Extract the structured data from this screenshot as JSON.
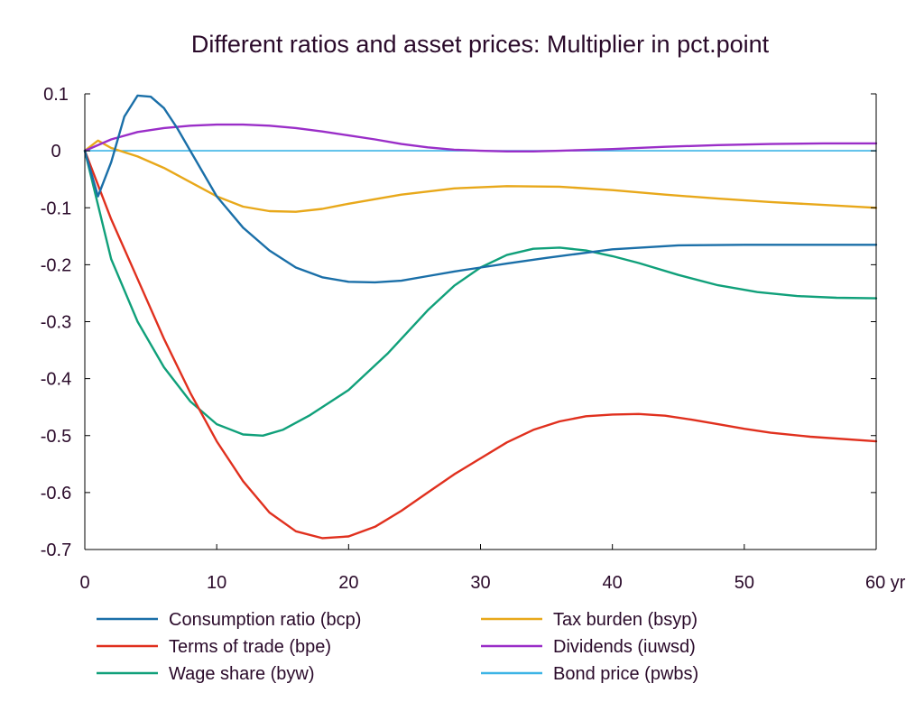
{
  "chart_data": {
    "type": "line",
    "title": "Different ratios and asset prices: Multiplier in pct.point",
    "xlabel": "",
    "ylabel": "",
    "xlim": [
      0,
      60
    ],
    "ylim": [
      -0.7,
      0.1
    ],
    "x_ticks": [
      0,
      10,
      20,
      30,
      40,
      50,
      60
    ],
    "x_tick_labels": [
      "0",
      "10",
      "20",
      "30",
      "40",
      "50",
      "60 yr"
    ],
    "y_ticks": [
      0.1,
      0,
      -0.1,
      -0.2,
      -0.3,
      -0.4,
      -0.5,
      -0.6,
      -0.7
    ],
    "y_tick_labels": [
      "0.1",
      "0",
      "-0.1",
      "-0.2",
      "-0.3",
      "-0.4",
      "-0.5",
      "-0.6",
      "-0.7"
    ],
    "grid": false,
    "legend_position": "bottom",
    "series": [
      {
        "name": "Consumption ratio (bcp)",
        "color": "#1a6fa8",
        "x": [
          0,
          1,
          2,
          3,
          4,
          5,
          6,
          7,
          8,
          10,
          12,
          14,
          16,
          18,
          20,
          22,
          24,
          26,
          28,
          30,
          32,
          35,
          40,
          45,
          50,
          55,
          60
        ],
        "y": [
          0,
          -0.08,
          -0.02,
          0.06,
          0.097,
          0.095,
          0.075,
          0.04,
          0.0,
          -0.08,
          -0.135,
          -0.175,
          -0.205,
          -0.222,
          -0.23,
          -0.231,
          -0.228,
          -0.22,
          -0.212,
          -0.205,
          -0.198,
          -0.188,
          -0.173,
          -0.166,
          -0.165,
          -0.165,
          -0.165
        ]
      },
      {
        "name": "Terms of trade (bpe)",
        "color": "#e0301e",
        "x": [
          0,
          2,
          4,
          6,
          8,
          10,
          12,
          14,
          16,
          18,
          20,
          22,
          24,
          26,
          28,
          30,
          32,
          34,
          36,
          38,
          40,
          42,
          44,
          46,
          48,
          50,
          52,
          55,
          60
        ],
        "y": [
          0,
          -0.12,
          -0.225,
          -0.33,
          -0.425,
          -0.51,
          -0.58,
          -0.635,
          -0.668,
          -0.68,
          -0.677,
          -0.66,
          -0.632,
          -0.6,
          -0.568,
          -0.54,
          -0.512,
          -0.49,
          -0.475,
          -0.466,
          -0.463,
          -0.462,
          -0.465,
          -0.472,
          -0.48,
          -0.488,
          -0.495,
          -0.502,
          -0.51
        ]
      },
      {
        "name": "Wage share (byw)",
        "color": "#10a07a",
        "x": [
          0,
          2,
          4,
          6,
          8,
          10,
          12,
          13.5,
          15,
          17,
          20,
          23,
          26,
          28,
          30,
          32,
          34,
          36,
          38,
          40,
          42,
          45,
          48,
          51,
          54,
          57,
          60
        ],
        "y": [
          0,
          -0.19,
          -0.3,
          -0.38,
          -0.44,
          -0.48,
          -0.498,
          -0.5,
          -0.49,
          -0.465,
          -0.42,
          -0.355,
          -0.28,
          -0.237,
          -0.205,
          -0.183,
          -0.172,
          -0.17,
          -0.175,
          -0.185,
          -0.197,
          -0.218,
          -0.236,
          -0.248,
          -0.255,
          -0.258,
          -0.259
        ]
      },
      {
        "name": "Tax burden (bsyp)",
        "color": "#e8a81a",
        "x": [
          0,
          1,
          2,
          4,
          6,
          8,
          10,
          12,
          14,
          16,
          18,
          20,
          24,
          28,
          32,
          36,
          40,
          44,
          48,
          52,
          56,
          60
        ],
        "y": [
          0,
          0.018,
          0.005,
          -0.01,
          -0.03,
          -0.055,
          -0.08,
          -0.098,
          -0.106,
          -0.107,
          -0.102,
          -0.093,
          -0.077,
          -0.066,
          -0.062,
          -0.063,
          -0.069,
          -0.077,
          -0.084,
          -0.09,
          -0.095,
          -0.1
        ]
      },
      {
        "name": "Dividends (iuwsd)",
        "color": "#9a2ec8",
        "x": [
          0,
          2,
          4,
          6,
          8,
          10,
          12,
          14,
          16,
          18,
          20,
          22,
          24,
          26,
          28,
          30,
          32,
          34,
          36,
          40,
          44,
          48,
          52,
          56,
          60
        ],
        "y": [
          0,
          0.02,
          0.033,
          0.04,
          0.044,
          0.046,
          0.046,
          0.044,
          0.04,
          0.034,
          0.027,
          0.02,
          0.012,
          0.006,
          0.002,
          0.0,
          -0.001,
          -0.001,
          0.0,
          0.003,
          0.007,
          0.01,
          0.012,
          0.013,
          0.013
        ]
      },
      {
        "name": "Bond price (pwbs)",
        "color": "#3cb4e6",
        "x": [
          0,
          60
        ],
        "y": [
          0,
          0
        ]
      }
    ]
  }
}
